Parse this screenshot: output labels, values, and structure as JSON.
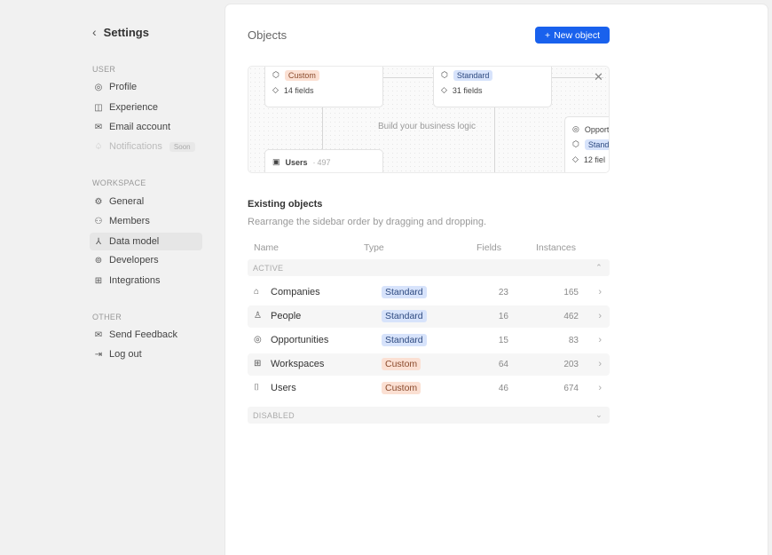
{
  "sidebar": {
    "back_label": "Settings",
    "sections": [
      {
        "label": "USER",
        "items": [
          {
            "label": "Profile",
            "icon": "user-circle-icon"
          },
          {
            "label": "Experience",
            "icon": "experience-icon"
          },
          {
            "label": "Email account",
            "icon": "mail-icon"
          },
          {
            "label": "Notifications",
            "icon": "bell-icon",
            "badge": "Soon",
            "disabled": true
          }
        ]
      },
      {
        "label": "WORKSPACE",
        "items": [
          {
            "label": "General",
            "icon": "gear-icon"
          },
          {
            "label": "Members",
            "icon": "users-icon"
          },
          {
            "label": "Data model",
            "icon": "hierarchy-icon",
            "selected": true
          },
          {
            "label": "Developers",
            "icon": "robot-icon"
          },
          {
            "label": "Integrations",
            "icon": "apps-icon"
          }
        ]
      },
      {
        "label": "OTHER",
        "items": [
          {
            "label": "Send Feedback",
            "icon": "mail-icon"
          },
          {
            "label": "Log out",
            "icon": "logout-icon"
          }
        ]
      }
    ]
  },
  "main": {
    "title": "Objects",
    "new_button": "New object",
    "banner": {
      "text": "Build your business logic",
      "cards": [
        {
          "badge": "Custom",
          "fields": "14 fields"
        },
        {
          "badge": "Standard",
          "fields": "31 fields"
        },
        {
          "name": "Users",
          "count": "497"
        },
        {
          "name": "Opportu",
          "badge": "Stand",
          "fields": "12 fiel"
        }
      ]
    },
    "existing_title": "Existing objects",
    "existing_subtitle": "Rearrange the sidebar order by dragging and dropping.",
    "columns": [
      "Name",
      "Type",
      "Fields",
      "Instances"
    ],
    "active_label": "ACTIVE",
    "disabled_label": "DISABLED",
    "rows": [
      {
        "name": "Companies",
        "type": "Standard",
        "fields": "23",
        "instances": "165"
      },
      {
        "name": "People",
        "type": "Standard",
        "fields": "16",
        "instances": "462"
      },
      {
        "name": "Opportunities",
        "type": "Standard",
        "fields": "15",
        "instances": "83"
      },
      {
        "name": "Workspaces",
        "type": "Custom",
        "fields": "64",
        "instances": "203"
      },
      {
        "name": "Users",
        "type": "Custom",
        "fields": "46",
        "instances": "674"
      }
    ]
  },
  "colors": {
    "accent": "#1961ed",
    "standard_badge": "#d7e3fb",
    "custom_badge": "#fbe0d3"
  }
}
